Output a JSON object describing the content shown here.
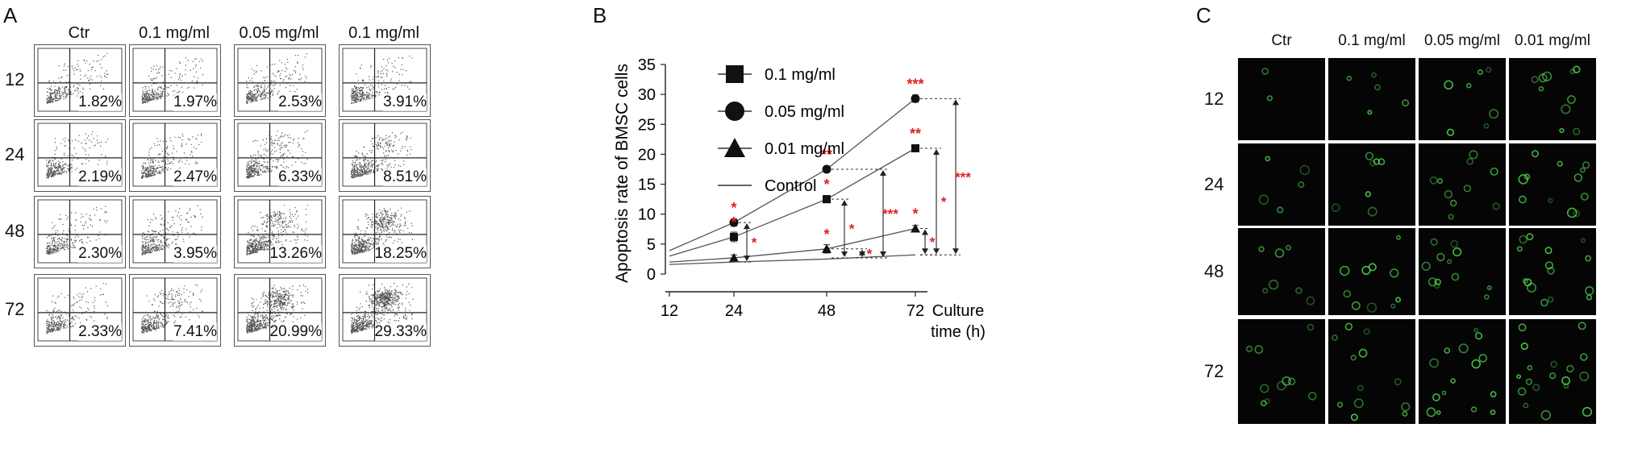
{
  "panelA": {
    "letter": "A",
    "columns": [
      "Ctr",
      "0.1 mg/ml",
      "0.05 mg/ml",
      "0.1 mg/ml"
    ],
    "rows": [
      "12",
      "24",
      "48",
      "72"
    ],
    "percentages": [
      [
        "1.82%",
        "1.97%",
        "2.53%",
        "3.91%"
      ],
      [
        "2.19%",
        "2.47%",
        "6.33%",
        "8.51%"
      ],
      [
        "2.30%",
        "3.95%",
        "13.26%",
        "18.25%"
      ],
      [
        "2.33%",
        "7.41%",
        "20.99%",
        "29.33%"
      ]
    ]
  },
  "panelB": {
    "letter": "B"
  },
  "panelC": {
    "letter": "C",
    "columns": [
      "Ctr",
      "0.1 mg/ml",
      "0.05 mg/ml",
      "0.01 mg/ml"
    ],
    "rows": [
      "12",
      "24",
      "48",
      "72"
    ]
  },
  "chart_data": {
    "type": "line",
    "x": [
      12,
      24,
      48,
      72
    ],
    "xlabel": "Culture time (h)",
    "ylabel": "Apoptosis rate of BMSC cells",
    "xticks": [
      "12",
      "24",
      "48",
      "72"
    ],
    "yticks": [
      "0",
      "5",
      "10",
      "15",
      "20",
      "25",
      "30",
      "35"
    ],
    "ylim": [
      0,
      35
    ],
    "legend_position": "top-left",
    "series": [
      {
        "name": "0.1 mg/ml",
        "marker": "square",
        "values": [
          3.0,
          6.2,
          12.5,
          21.0
        ],
        "errors": [
          0,
          0.8,
          0.6,
          0.5
        ]
      },
      {
        "name": "0.05 mg/ml",
        "marker": "circle",
        "values": [
          3.9,
          8.6,
          17.5,
          29.3
        ],
        "errors": [
          0,
          0.6,
          0.5,
          0.6
        ]
      },
      {
        "name": "0.01 mg/ml",
        "marker": "triangle",
        "values": [
          2.0,
          2.7,
          4.2,
          7.6
        ],
        "errors": [
          0,
          0.5,
          0.7,
          0.5
        ]
      },
      {
        "name": "Control",
        "marker": "none",
        "values": [
          1.6,
          2.0,
          2.5,
          3.2
        ],
        "errors": [
          0,
          0,
          0,
          0
        ]
      }
    ],
    "significance": [
      {
        "series": "0.1 mg/ml",
        "x": 24,
        "label": "*"
      },
      {
        "series": "0.05 mg/ml",
        "x": 24,
        "label": "*"
      },
      {
        "series": "0.1 mg/ml",
        "x": 48,
        "label": "*"
      },
      {
        "series": "0.05 mg/ml",
        "x": 48,
        "label": "**"
      },
      {
        "series": "0.01 mg/ml",
        "x": 48,
        "label": "*"
      },
      {
        "series": "0.1 mg/ml",
        "x": 72,
        "label": "**"
      },
      {
        "series": "0.05 mg/ml",
        "x": 72,
        "label": "***"
      },
      {
        "series": "0.01 mg/ml",
        "x": 72,
        "label": "*"
      }
    ],
    "brackets": [
      {
        "x": 24,
        "series": "0.05 mg/ml",
        "label": "*"
      },
      {
        "x": 48,
        "series": "0.1 mg/ml",
        "label": "*"
      },
      {
        "x": 48,
        "series": "0.01 mg/ml",
        "label": "*"
      },
      {
        "x": 48,
        "series": "0.05 mg/ml",
        "label": "***"
      },
      {
        "x": 72,
        "series": "0.01 mg/ml",
        "label": "*"
      },
      {
        "x": 72,
        "series": "0.1 mg/ml",
        "label": "*"
      },
      {
        "x": 72,
        "series": "0.05 mg/ml",
        "label": "***"
      }
    ],
    "colors": {
      "line": "#555555",
      "marker": "#111111",
      "significance": "#e02020"
    }
  }
}
